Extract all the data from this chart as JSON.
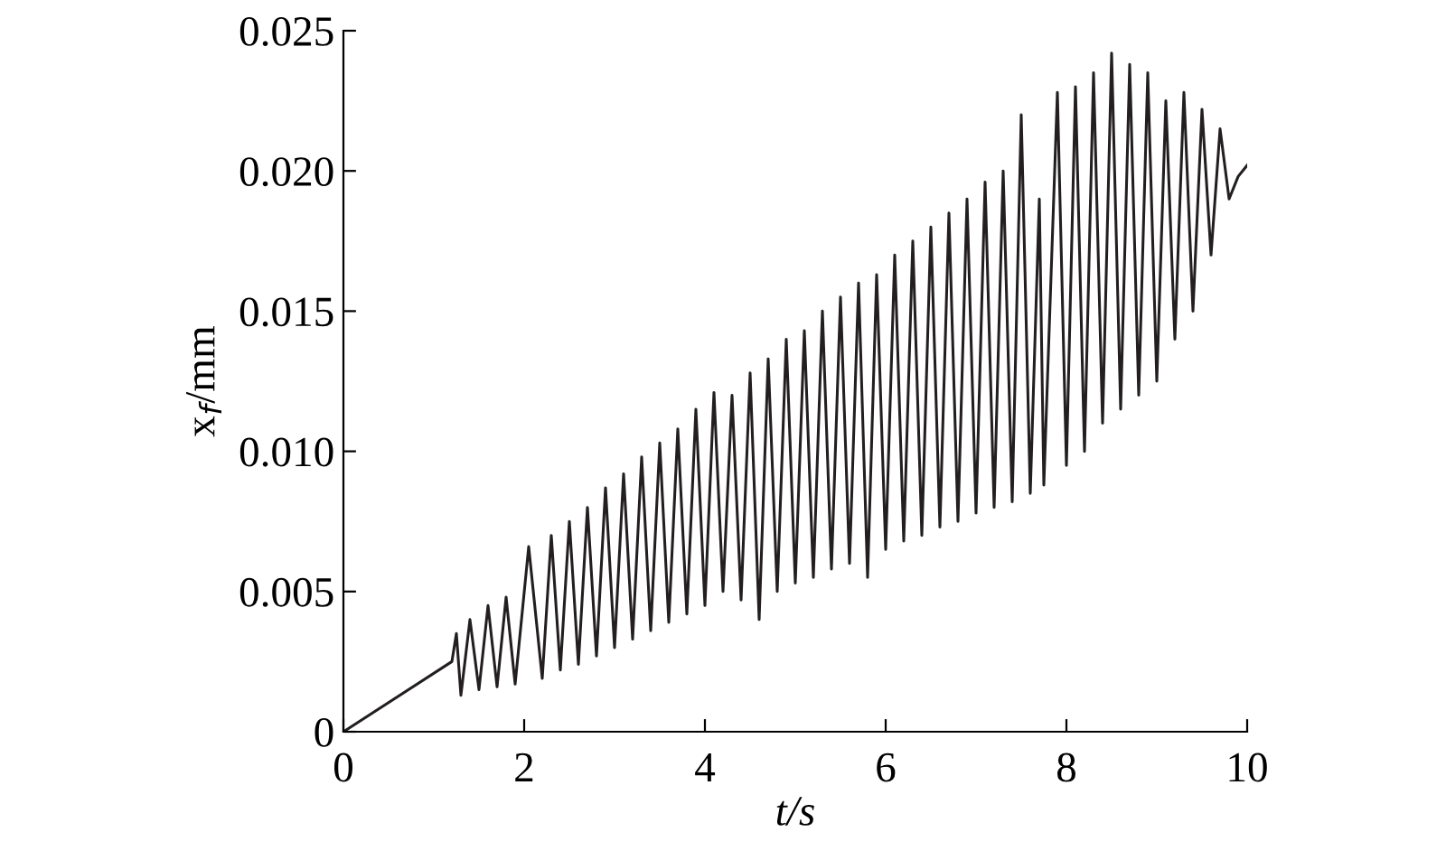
{
  "chart_data": {
    "type": "line",
    "xlabel": "t/s",
    "ylabel": "x$_{f}$/mm",
    "series": [
      {
        "color": "#231f20",
        "x": [
          0,
          1.2,
          1.25,
          1.3,
          1.4,
          1.5,
          1.6,
          1.7,
          1.8,
          1.9,
          2.05,
          2.2,
          2.3,
          2.4,
          2.5,
          2.6,
          2.7,
          2.8,
          2.9,
          3.0,
          3.1,
          3.2,
          3.3,
          3.4,
          3.5,
          3.6,
          3.7,
          3.8,
          3.9,
          4.0,
          4.1,
          4.2,
          4.3,
          4.4,
          4.5,
          4.6,
          4.7,
          4.8,
          4.9,
          5.0,
          5.1,
          5.2,
          5.3,
          5.4,
          5.5,
          5.6,
          5.7,
          5.8,
          5.9,
          6.0,
          6.1,
          6.2,
          6.3,
          6.4,
          6.5,
          6.6,
          6.7,
          6.8,
          6.9,
          7.0,
          7.1,
          7.2,
          7.3,
          7.4,
          7.5,
          7.6,
          7.7,
          7.75,
          7.9,
          8.0,
          8.1,
          8.2,
          8.3,
          8.4,
          8.5,
          8.6,
          8.7,
          8.8,
          8.9,
          9.0,
          9.1,
          9.2,
          9.3,
          9.4,
          9.5,
          9.6,
          9.7,
          9.8,
          9.9,
          10.0
        ],
        "values": [
          0,
          0.0025,
          0.0035,
          0.0013,
          0.004,
          0.0015,
          0.0045,
          0.0016,
          0.0048,
          0.0017,
          0.0066,
          0.0019,
          0.007,
          0.0022,
          0.0075,
          0.0024,
          0.008,
          0.0027,
          0.0087,
          0.003,
          0.0092,
          0.0033,
          0.0098,
          0.0036,
          0.0103,
          0.0039,
          0.0108,
          0.0042,
          0.0115,
          0.0045,
          0.0121,
          0.005,
          0.012,
          0.0047,
          0.0128,
          0.004,
          0.0133,
          0.005,
          0.014,
          0.0053,
          0.0143,
          0.0055,
          0.015,
          0.0058,
          0.0155,
          0.006,
          0.016,
          0.0055,
          0.0163,
          0.0065,
          0.017,
          0.0068,
          0.0175,
          0.007,
          0.018,
          0.0073,
          0.0185,
          0.0075,
          0.019,
          0.0078,
          0.0196,
          0.008,
          0.02,
          0.0082,
          0.022,
          0.0085,
          0.019,
          0.0088,
          0.0228,
          0.0095,
          0.023,
          0.01,
          0.0235,
          0.011,
          0.0242,
          0.0115,
          0.0238,
          0.012,
          0.0235,
          0.0125,
          0.0225,
          0.014,
          0.0228,
          0.015,
          0.0222,
          0.017,
          0.0215,
          0.019,
          0.0198,
          0.0202
        ]
      }
    ],
    "xlim": [
      0,
      10
    ],
    "xticks": [
      0,
      2,
      4,
      6,
      8,
      10
    ],
    "ylim": [
      0,
      0.025
    ],
    "yticks": [
      0,
      0.005,
      {
        "value": 0.01,
        "label": "0.010"
      },
      0.015,
      {
        "value": 0.02,
        "label": "0.020"
      },
      0.025
    ],
    "grid": false,
    "marker": "none",
    "line_style": "solid"
  }
}
